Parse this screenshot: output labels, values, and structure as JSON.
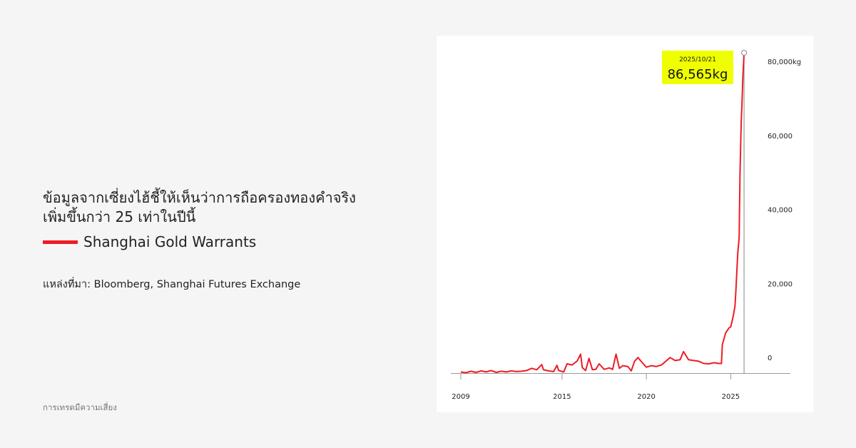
{
  "left": {
    "title_line1": "ข้อมูลจากเซี่ยงไฮ้ชี้ให้เห็นว่าการถือครองทองคำจริง",
    "title_line2": "เพิ่มขึ้นกว่า 25 เท่าในปีนี้",
    "legend_label": "Shanghai Gold Warrants",
    "source": "แหล่งที่มา: Bloomberg, Shanghai Futures Exchange",
    "disclaimer": "การเทรดมีความเสี่ยง"
  },
  "colors": {
    "series": "#ee1c25",
    "annotation_bg": "#f0ff00",
    "background": "#f5f5f5",
    "axis": "#888888"
  },
  "chart_data": {
    "type": "line",
    "title": "",
    "xlabel": "",
    "ylabel": "",
    "xlim": [
      2008.5,
      2028
    ],
    "ylim": [
      0,
      86565
    ],
    "grid": false,
    "legend": "left-outside",
    "x_ticks": [
      {
        "value": 2009,
        "label": "2009"
      },
      {
        "value": 2015,
        "label": "2015"
      },
      {
        "value": 2020,
        "label": "2020"
      },
      {
        "value": 2025,
        "label": "2025"
      }
    ],
    "y_ticks": [
      {
        "value": 0,
        "label": "0"
      },
      {
        "value": 20000,
        "label": "20,000"
      },
      {
        "value": 40000,
        "label": "40,000"
      },
      {
        "value": 60000,
        "label": "60,000"
      },
      {
        "value": 80000,
        "label": "80,000kg"
      }
    ],
    "annotation": {
      "date": "2025/10/21",
      "value_label": "86,565kg",
      "x": 2025.79,
      "y": 86565
    },
    "series": [
      {
        "name": "Shanghai Gold Warrants",
        "x": [
          2009.0,
          2009.3,
          2009.6,
          2009.9,
          2010.2,
          2010.5,
          2010.8,
          2011.1,
          2011.4,
          2011.7,
          2012.0,
          2012.3,
          2012.6,
          2012.9,
          2013.2,
          2013.5,
          2013.8,
          2013.9,
          2014.2,
          2014.5,
          2014.7,
          2014.8,
          2015.1,
          2015.3,
          2015.6,
          2015.9,
          2016.1,
          2016.2,
          2016.4,
          2016.6,
          2016.8,
          2017.0,
          2017.2,
          2017.5,
          2017.8,
          2018.0,
          2018.2,
          2018.4,
          2018.6,
          2018.9,
          2019.1,
          2019.3,
          2019.5,
          2019.8,
          2020.0,
          2020.3,
          2020.6,
          2020.9,
          2021.2,
          2021.4,
          2021.7,
          2022.0,
          2022.2,
          2022.5,
          2022.8,
          2023.1,
          2023.4,
          2023.7,
          2024.0,
          2024.3,
          2024.45,
          2024.5,
          2024.7,
          2024.9,
          2025.0,
          2025.15,
          2025.25,
          2025.3,
          2025.38,
          2025.42,
          2025.5,
          2025.55,
          2025.62,
          2025.66,
          2025.72,
          2025.79
        ],
        "y": [
          300,
          100,
          500,
          200,
          600,
          300,
          700,
          200,
          500,
          300,
          600,
          400,
          500,
          700,
          1300,
          900,
          2300,
          900,
          600,
          400,
          2100,
          700,
          300,
          2500,
          2200,
          3300,
          5100,
          1500,
          700,
          4000,
          900,
          1000,
          2500,
          1000,
          1400,
          1000,
          5100,
          1300,
          2000,
          1800,
          600,
          3200,
          4200,
          2600,
          1600,
          2000,
          1800,
          2200,
          3400,
          4200,
          3400,
          3600,
          5800,
          3600,
          3400,
          3200,
          2600,
          2500,
          2800,
          2600,
          2600,
          7700,
          10900,
          12200,
          12500,
          15400,
          18000,
          21800,
          29200,
          32500,
          36600,
          54000,
          68000,
          72000,
          80000,
          86565
        ]
      }
    ]
  }
}
